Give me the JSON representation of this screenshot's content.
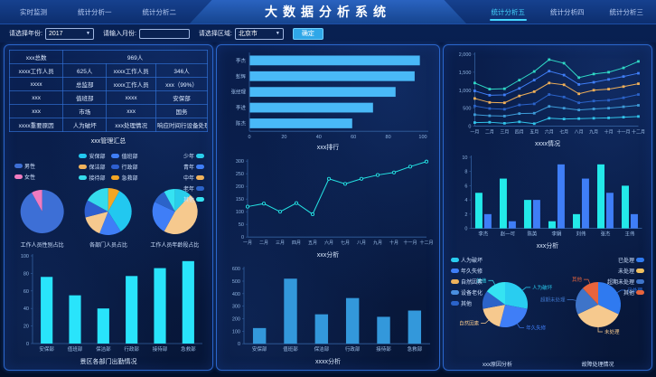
{
  "header": {
    "title": "大数据分析系统",
    "nav_left": [
      {
        "label": "实时监测",
        "active": false
      },
      {
        "label": "统计分析一",
        "active": false
      },
      {
        "label": "统计分析二",
        "active": false
      }
    ],
    "nav_right": [
      {
        "label": "统计分析五",
        "active": true
      },
      {
        "label": "统计分析四",
        "active": false
      },
      {
        "label": "统计分析三",
        "active": false
      }
    ]
  },
  "filters": {
    "year_label": "请选择年份:",
    "year_value": "2017",
    "month_label": "请输入月份:",
    "month_value": "",
    "region_label": "请选择区域:",
    "region_value": "北京市",
    "submit_label": "确定"
  },
  "left_panel": {
    "section_title": "xxx管理汇总",
    "summary_table": {
      "rows": [
        [
          {
            "text": "xxx总数"
          },
          {
            "text": "969人",
            "span": 3
          }
        ],
        [
          {
            "text": "xxxx工作人员"
          },
          {
            "text": "625人"
          },
          {
            "text": "xxxx工作人员"
          },
          {
            "text": "346人"
          }
        ],
        [
          {
            "text": "xxxx"
          },
          {
            "text": "总监部"
          },
          {
            "text": "xxxx工作人员"
          },
          {
            "text": "xxx（99%）"
          }
        ],
        [
          {
            "text": "xxx"
          },
          {
            "text": "值班部"
          },
          {
            "text": "xxxx"
          },
          {
            "text": "安保部"
          }
        ],
        [
          {
            "text": "xxx"
          },
          {
            "text": "市场"
          },
          {
            "text": "xxx"
          },
          {
            "text": "国务"
          }
        ],
        [
          {
            "text": "xxxx重要原因"
          },
          {
            "text": "人为破坏"
          },
          {
            "text": "xxx处理情况"
          },
          {
            "text": "响应时间行设备处理"
          }
        ]
      ]
    }
  },
  "chart_data": [
    {
      "id": "gender-pie",
      "type": "pie",
      "title": "工作人员性别占比",
      "series": [
        {
          "name": "男性",
          "value": 92,
          "color": "#3d6fd6"
        },
        {
          "name": "女性",
          "value": 8,
          "color": "#f07bc0"
        }
      ]
    },
    {
      "id": "dept-pie",
      "type": "pie",
      "title": "各部门人员占比",
      "series": [
        {
          "name": "急救部",
          "value": 8,
          "color": "#f5a623"
        },
        {
          "name": "安保部",
          "value": 33,
          "color": "#22c8f0"
        },
        {
          "name": "值班部",
          "value": 15,
          "color": "#3f7ef7"
        },
        {
          "name": "保洁部",
          "value": 15,
          "color": "#f6c98e"
        },
        {
          "name": "行政部",
          "value": 12,
          "color": "#2e5fd0"
        },
        {
          "name": "接待部",
          "value": 17,
          "color": "#35dcec"
        }
      ],
      "legend": [
        {
          "name": "安保部",
          "color": "#22c8f0"
        },
        {
          "name": "值班部",
          "color": "#3f7ef7"
        },
        {
          "name": "保洁部",
          "color": "#f0b35c"
        },
        {
          "name": "行政部",
          "color": "#2e5fd0"
        },
        {
          "name": "接待部",
          "color": "#35dcec"
        },
        {
          "name": "急救部",
          "color": "#f5a623"
        }
      ]
    },
    {
      "id": "age-pie",
      "type": "pie",
      "title": "工作人员年龄段占比",
      "series": [
        {
          "name": "少年",
          "value": 12,
          "color": "#29cdeb"
        },
        {
          "name": "中年",
          "value": 46,
          "color": "#f6c98e"
        },
        {
          "name": "青年",
          "value": 24,
          "color": "#3f7ef7"
        },
        {
          "name": "老年",
          "value": 10,
          "color": "#2b63c9"
        },
        {
          "name": "其他",
          "value": 8,
          "color": "#35e3f2"
        }
      ],
      "legend": [
        {
          "name": "少年",
          "color": "#29cdeb"
        },
        {
          "name": "青年",
          "color": "#3f7ef7"
        },
        {
          "name": "中年",
          "color": "#f0b35c"
        },
        {
          "name": "老年",
          "color": "#2b63c9"
        },
        {
          "name": "其他",
          "color": "#35e3f2"
        }
      ]
    },
    {
      "id": "attendance-bar",
      "type": "bar",
      "title": "景区各部门出勤情况",
      "categories": [
        "安保部",
        "值班部",
        "保洁部",
        "行政部",
        "接待部",
        "急救部"
      ],
      "values": [
        76,
        55,
        40,
        77,
        86,
        94
      ],
      "color": "#29e4fb",
      "ylim": [
        0,
        100
      ],
      "ystep": 20
    },
    {
      "id": "ranking-hbar",
      "type": "hbar",
      "title": "xxx排行",
      "categories": [
        "李杰",
        "彭辉",
        "张经理",
        "李进",
        "陈杰"
      ],
      "values": [
        98,
        95,
        84,
        71,
        59
      ],
      "color": "#49b9f7",
      "xlim": [
        0,
        100
      ],
      "xstep": 20
    },
    {
      "id": "trend-line",
      "type": "line",
      "title": "xxx分析",
      "categories": [
        "一月",
        "二月",
        "三月",
        "四月",
        "五月",
        "六月",
        "七月",
        "八月",
        "九月",
        "十月",
        "十一月",
        "十二月"
      ],
      "series": [
        {
          "values": [
            120,
            132,
            100,
            134,
            90,
            230,
            210,
            230,
            245,
            255,
            278,
            298
          ],
          "color": "#25e3e3",
          "marker": "circle"
        }
      ],
      "ylim": [
        0,
        300
      ],
      "ystep": 50
    },
    {
      "id": "dept-bar",
      "type": "bar",
      "title": "xxxx分析",
      "categories": [
        "安保部",
        "值班部",
        "保洁部",
        "行政部",
        "接待部",
        "急救部"
      ],
      "values": [
        125,
        520,
        235,
        365,
        215,
        265
      ],
      "color": "#3398db",
      "ylim": [
        0,
        600
      ],
      "ystep": 100
    },
    {
      "id": "situation-lines",
      "type": "line",
      "title": "xxxx情况",
      "comma": true,
      "categories": [
        "一月",
        "二月",
        "三月",
        "四月",
        "五月",
        "六月",
        "七月",
        "八月",
        "九月",
        "十月",
        "十一月",
        "十二月"
      ],
      "series": [
        {
          "values": [
            1200,
            1030,
            1040,
            1280,
            1520,
            1850,
            1750,
            1350,
            1450,
            1500,
            1620,
            1800
          ],
          "color": "#2fd8c5",
          "marker": "square"
        },
        {
          "values": [
            980,
            860,
            870,
            1050,
            1280,
            1530,
            1420,
            1160,
            1220,
            1300,
            1380,
            1470
          ],
          "color": "#3f7ef7",
          "marker": "square"
        },
        {
          "values": [
            770,
            660,
            650,
            840,
            960,
            1200,
            1150,
            900,
            1000,
            1030,
            1100,
            1180
          ],
          "color": "#efaf58",
          "marker": "square"
        },
        {
          "values": [
            560,
            490,
            470,
            590,
            620,
            880,
            810,
            650,
            700,
            720,
            790,
            880
          ],
          "color": "#2b63c9",
          "marker": "square"
        },
        {
          "values": [
            320,
            290,
            280,
            350,
            360,
            550,
            500,
            450,
            480,
            500,
            540,
            580
          ],
          "color": "#3d9bd8",
          "marker": "square"
        },
        {
          "values": [
            100,
            110,
            80,
            120,
            70,
            220,
            200,
            210,
            220,
            230,
            250,
            270
          ],
          "color": "#31c3ea",
          "marker": "square"
        }
      ],
      "ylim": [
        0,
        2000
      ],
      "ystep": 500
    },
    {
      "id": "person-bars",
      "type": "bar",
      "title": "xxx分析",
      "categories": [
        "李杰",
        "赵一可",
        "陈英",
        "李娟",
        "刘伟",
        "张杰",
        "王伟"
      ],
      "series": [
        {
          "values": [
            5,
            7,
            4,
            1,
            2,
            9,
            6
          ],
          "color": "#23e9e9"
        },
        {
          "values": [
            2,
            1,
            4,
            9,
            7,
            5,
            2
          ],
          "color": "#3f7ef7"
        }
      ],
      "ylim": [
        0,
        10
      ],
      "ystep": 2
    },
    {
      "id": "cause-pie",
      "type": "pie",
      "title": "xxx原因分析",
      "series": [
        {
          "name": "人为破坏",
          "value": 28,
          "color": "#29cdf0",
          "callout": true
        },
        {
          "name": "年久失修",
          "value": 26,
          "color": "#3f7ef7",
          "callout": true
        },
        {
          "name": "自然因素",
          "value": 18,
          "color": "#f6c98e",
          "callout": true
        },
        {
          "name": "设备老化",
          "value": 13,
          "color": "#2b63c9"
        },
        {
          "name": "其他",
          "value": 15,
          "color": "#35e3f2",
          "callout": true
        }
      ],
      "legend": [
        {
          "name": "人为破坏",
          "color": "#29cdf0"
        },
        {
          "name": "年久失修",
          "color": "#3f7ef7"
        },
        {
          "name": "自然因素",
          "color": "#f0b35c"
        },
        {
          "name": "设备老化",
          "color": "#4a8fe0"
        },
        {
          "name": "其他",
          "color": "#2b63c9"
        }
      ]
    },
    {
      "id": "fault-pie",
      "type": "pie",
      "title": "故障处理情况",
      "series": [
        {
          "name": "已处理",
          "value": 32,
          "color": "#2f7af0",
          "callout": true
        },
        {
          "name": "未处理",
          "value": 36,
          "color": "#f6c98e",
          "callout": true
        },
        {
          "name": "超期未处理",
          "value": 20,
          "color": "#3e74c9",
          "callout": true
        },
        {
          "name": "其他",
          "value": 12,
          "color": "#e8643c",
          "callout": true
        }
      ],
      "legend": [
        {
          "name": "已处理",
          "color": "#2f7af0"
        },
        {
          "name": "未处理",
          "color": "#f0c060"
        },
        {
          "name": "超期未处理",
          "color": "#3e74c9"
        },
        {
          "name": "其他",
          "color": "#e8643c"
        }
      ]
    }
  ]
}
